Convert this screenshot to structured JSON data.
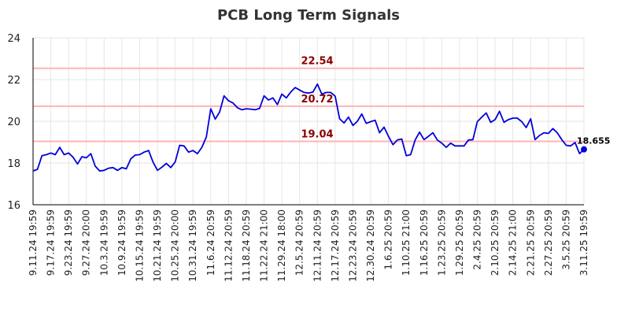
{
  "chart_data": {
    "type": "line",
    "title": "PCB Long Term Signals",
    "xlabel": "",
    "ylabel": "",
    "ylim": [
      16,
      24
    ],
    "yticks": [
      16,
      18,
      20,
      22,
      24
    ],
    "grid": true,
    "colors": {
      "line": "#0000dd",
      "level_line": "#ffb3b3",
      "level_text": "#8b0000",
      "axis": "#000000",
      "grid": "#e6e6e6",
      "last_point": "#0000dd"
    },
    "xtick_labels": [
      "9.11.24 19:59",
      "9.17.24 19:59",
      "9.23.24 19:59",
      "9.27.24 20:00",
      "10.3.24 19:59",
      "10.9.24 19:59",
      "10.15.24 19:59",
      "10.21.24 19:59",
      "10.25.24 20:00",
      "10.31.24 19:59",
      "11.6.24 20:59",
      "11.12.24 20:59",
      "11.18.24 20:59",
      "11.22.24 21:00",
      "11.29.24 18:00",
      "12.5.24 20:59",
      "12.11.24 20:59",
      "12.17.24 20:59",
      "12.23.24 20:59",
      "12.30.24 20:59",
      "1.6.25 20:59",
      "1.10.25 21:00",
      "1.16.25 20:59",
      "1.23.25 20:59",
      "1.29.25 20:59",
      "2.4.25 20:59",
      "2.10.25 20:59",
      "2.14.25 21:00",
      "2.21.25 20:59",
      "2.27.25 20:59",
      "3.5.25 20:59",
      "3.11.25 19:59"
    ],
    "levels": [
      {
        "value": 22.54,
        "label": "22.54"
      },
      {
        "value": 20.72,
        "label": "20.72"
      },
      {
        "value": 19.04,
        "label": "19.04"
      }
    ],
    "last_value_label": "18.655",
    "series": [
      {
        "values": [
          17.62,
          17.7,
          18.35,
          18.4,
          18.48,
          18.4,
          18.75,
          18.4,
          18.48,
          18.28,
          17.95,
          18.3,
          18.25,
          18.45,
          17.85,
          17.62,
          17.65,
          17.75,
          17.78,
          17.65,
          17.78,
          17.72,
          18.2,
          18.38,
          18.4,
          18.52,
          18.6,
          18.05,
          17.65,
          17.8,
          17.98,
          17.78,
          18.05,
          18.85,
          18.82,
          18.52,
          18.6,
          18.45,
          18.75,
          19.25,
          20.6,
          20.1,
          20.45,
          21.22,
          20.98,
          20.88,
          20.65,
          20.55,
          20.6,
          20.58,
          20.55,
          20.62,
          21.22,
          21.02,
          21.12,
          20.8,
          21.3,
          21.12,
          21.4,
          21.62,
          21.5,
          21.38,
          21.35,
          21.4,
          21.78,
          21.3,
          21.38,
          21.38,
          21.2,
          20.12,
          19.92,
          20.2,
          19.8,
          20.0,
          20.35,
          19.9,
          19.98,
          20.05,
          19.45,
          19.72,
          19.28,
          18.88,
          19.1,
          19.15,
          18.35,
          18.4,
          19.1,
          19.48,
          19.12,
          19.28,
          19.45,
          19.1,
          18.95,
          18.75,
          18.95,
          18.82,
          18.82,
          18.82,
          19.1,
          19.12,
          19.98,
          20.2,
          20.4,
          19.95,
          20.08,
          20.48,
          19.95,
          20.08,
          20.15,
          20.15,
          19.98,
          19.7,
          20.12,
          19.12,
          19.32,
          19.45,
          19.42,
          19.65,
          19.45,
          19.12,
          18.85,
          18.82,
          18.98,
          18.45,
          18.655
        ]
      }
    ]
  }
}
